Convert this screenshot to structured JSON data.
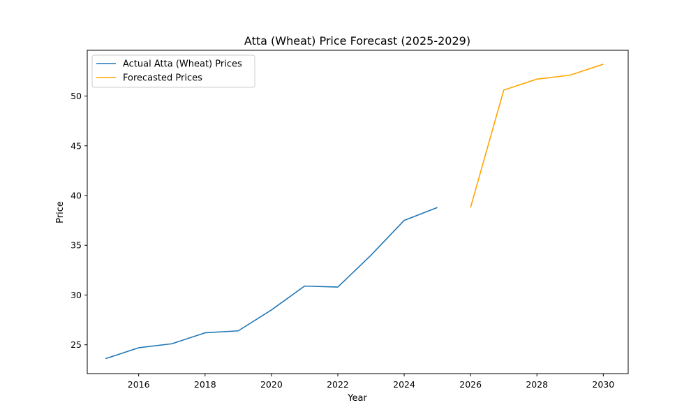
{
  "chart_data": {
    "type": "line",
    "title": "Atta (Wheat) Price Forecast (2025-2029)",
    "xlabel": "Year",
    "ylabel": "Price",
    "xlim": [
      2014.45,
      2030.75
    ],
    "ylim": [
      22.1,
      54.6
    ],
    "grid": false,
    "legend_position": "top-left",
    "x_ticks": [
      2016,
      2018,
      2020,
      2022,
      2024,
      2026,
      2028,
      2030
    ],
    "y_ticks": [
      25,
      30,
      35,
      40,
      45,
      50
    ],
    "series": [
      {
        "name": "Actual Atta (Wheat) Prices",
        "color": "#1f77b4",
        "x": [
          2015,
          2016,
          2017,
          2018,
          2019,
          2020,
          2021,
          2022,
          2023,
          2024,
          2025
        ],
        "y": [
          23.6,
          24.7,
          25.1,
          26.2,
          26.4,
          28.5,
          30.9,
          30.8,
          34.0,
          37.5,
          38.8
        ]
      },
      {
        "name": "Forecasted Prices",
        "color": "#ffa500",
        "x": [
          2026,
          2027,
          2028,
          2029,
          2030
        ],
        "y": [
          38.8,
          50.6,
          51.7,
          52.1,
          53.2
        ]
      }
    ]
  }
}
